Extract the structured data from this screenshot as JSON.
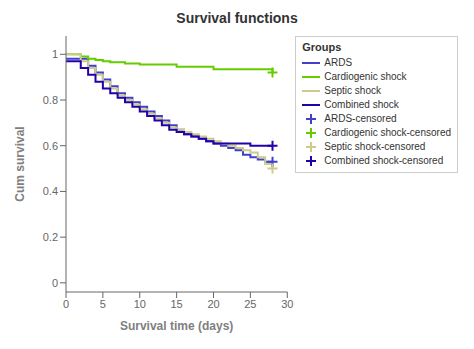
{
  "chart_data": {
    "type": "step",
    "title": "Survival functions",
    "xlabel": "Survival time (days)",
    "ylabel": "Cum survival",
    "xlim": [
      0,
      30.0
    ],
    "ylim": [
      -0.04,
      1.08
    ],
    "xticks": [
      0,
      5.0,
      10.0,
      15.0,
      20.0,
      25.0,
      30.0
    ],
    "yticks": [
      0,
      0.2,
      0.4,
      0.6,
      0.8,
      1.0
    ],
    "grid": false,
    "legend": "right",
    "legend_title": "Groups",
    "series": [
      {
        "name": "ARDS",
        "type": "step",
        "color": "#4040CC",
        "x": [
          0,
          2,
          3,
          4,
          5,
          6,
          7,
          8,
          9,
          10,
          11,
          12,
          13,
          14,
          15,
          16,
          17,
          18,
          19,
          20,
          21,
          22,
          23,
          24,
          25,
          26,
          27,
          28
        ],
        "values": [
          0.98,
          0.98,
          0.95,
          0.92,
          0.89,
          0.86,
          0.83,
          0.81,
          0.79,
          0.77,
          0.75,
          0.73,
          0.71,
          0.69,
          0.67,
          0.65,
          0.64,
          0.63,
          0.62,
          0.61,
          0.6,
          0.59,
          0.58,
          0.56,
          0.55,
          0.54,
          0.53,
          0.53
        ]
      },
      {
        "name": "Cardiogenic shock",
        "type": "step",
        "color": "#66CC00",
        "x": [
          0,
          2,
          3,
          4,
          5,
          6,
          8,
          10,
          15,
          20,
          28
        ],
        "values": [
          1.0,
          0.99,
          0.98,
          0.975,
          0.97,
          0.965,
          0.96,
          0.955,
          0.945,
          0.935,
          0.92
        ]
      },
      {
        "name": "Septic shock",
        "type": "step",
        "color": "#CCCC88",
        "x": [
          0,
          2,
          3,
          4,
          5,
          6,
          7,
          8,
          9,
          10,
          11,
          12,
          13,
          14,
          15,
          16,
          17,
          18,
          19,
          20,
          21,
          22,
          23,
          24,
          25,
          26,
          27,
          28
        ],
        "values": [
          1.0,
          0.97,
          0.94,
          0.91,
          0.88,
          0.85,
          0.82,
          0.8,
          0.78,
          0.76,
          0.74,
          0.72,
          0.7,
          0.68,
          0.67,
          0.66,
          0.65,
          0.64,
          0.63,
          0.62,
          0.61,
          0.6,
          0.59,
          0.58,
          0.57,
          0.55,
          0.52,
          0.5
        ]
      },
      {
        "name": "Combined shock",
        "type": "step",
        "color": "#2200AA",
        "x": [
          0,
          2,
          3,
          4,
          5,
          6,
          7,
          8,
          9,
          10,
          11,
          12,
          13,
          14,
          15,
          16,
          17,
          18,
          19,
          20,
          21,
          22,
          23,
          24,
          25,
          26,
          27,
          28
        ],
        "values": [
          0.97,
          0.94,
          0.91,
          0.88,
          0.85,
          0.83,
          0.81,
          0.79,
          0.77,
          0.75,
          0.73,
          0.71,
          0.69,
          0.67,
          0.66,
          0.65,
          0.64,
          0.63,
          0.62,
          0.61,
          0.61,
          0.61,
          0.61,
          0.61,
          0.6,
          0.6,
          0.6,
          0.6
        ]
      },
      {
        "name": "ARDS-censored",
        "type": "scatter",
        "marker": "plus",
        "color": "#4040CC",
        "x": [
          28
        ],
        "values": [
          0.53
        ]
      },
      {
        "name": "Cardiogenic shock-censored",
        "type": "scatter",
        "marker": "plus",
        "color": "#66CC00",
        "x": [
          28
        ],
        "values": [
          0.92
        ]
      },
      {
        "name": "Septic shock-censored",
        "type": "scatter",
        "marker": "plus",
        "color": "#CCCC88",
        "x": [
          28
        ],
        "values": [
          0.5
        ]
      },
      {
        "name": "Combined shock-censored",
        "type": "scatter",
        "marker": "plus",
        "color": "#2200AA",
        "x": [
          28
        ],
        "values": [
          0.6
        ]
      }
    ]
  }
}
